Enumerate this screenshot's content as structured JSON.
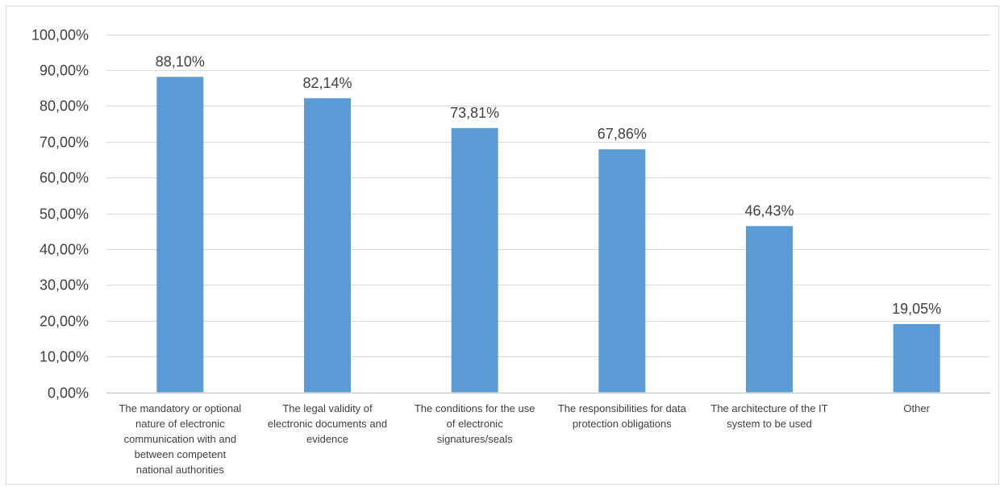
{
  "chart_data": {
    "type": "bar",
    "categories": [
      [
        "The mandatory or optional",
        "nature of electronic",
        "communication with and",
        "between competent",
        "national authorities"
      ],
      [
        "The legal validity of",
        "electronic documents and",
        "evidence"
      ],
      [
        "The conditions for the use",
        "of electronic",
        "signatures/seals"
      ],
      [
        "The responsibilities for data",
        "protection obligations"
      ],
      [
        "The architecture of the IT",
        "system to be used"
      ],
      [
        "Other"
      ]
    ],
    "values": [
      88.1,
      82.14,
      73.81,
      67.86,
      46.43,
      19.05
    ],
    "data_labels": [
      "88,10%",
      "82,14%",
      "73,81%",
      "67,86%",
      "46,43%",
      "19,05%"
    ],
    "y_ticks": [
      "0,00%",
      "10,00%",
      "20,00%",
      "30,00%",
      "40,00%",
      "50,00%",
      "60,00%",
      "70,00%",
      "80,00%",
      "90,00%",
      "100,00%"
    ],
    "ylim": [
      0,
      100
    ],
    "grid": true,
    "bar_color": "#5b9bd5",
    "title": "",
    "xlabel": "",
    "ylabel": ""
  }
}
